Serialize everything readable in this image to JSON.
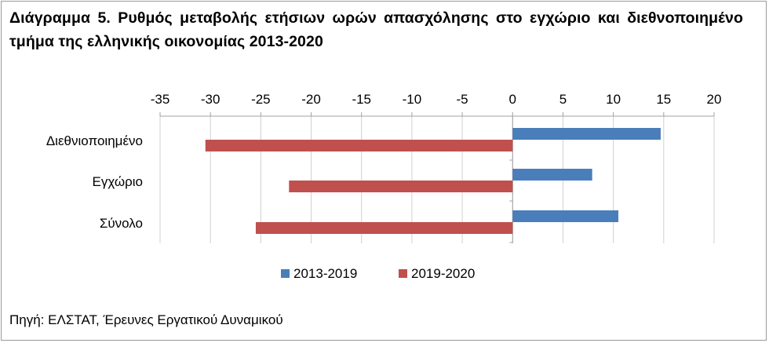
{
  "title": "Διάγραμμα 5. Ρυθμός μεταβολής ετήσιων ωρών απασχόλησης στο εγχώριο και διεθνοποιημένο τμήμα της ελληνικής οικονομίας 2013-2020",
  "source": "Πηγή: ΕΛΣΤΑΤ, Έρευνες Εργατικού Δυναμικού",
  "colors": {
    "series_2013_2019": "#4a7ebb",
    "series_2019_2020": "#c0504d",
    "axis": "#a0a0a0"
  },
  "chart_data": {
    "type": "bar",
    "orientation": "horizontal",
    "categories": [
      "Διεθνιοποιημένο",
      "Εγχώριο",
      "Σύνολο"
    ],
    "series": [
      {
        "name": "2013-2019",
        "color": "#4a7ebb",
        "values": [
          14.7,
          7.9,
          10.5
        ]
      },
      {
        "name": "2019-2020",
        "color": "#c0504d",
        "values": [
          -30.5,
          -22.2,
          -25.5
        ]
      }
    ],
    "xlim": [
      -35,
      20
    ],
    "xticks": [
      -35,
      -30,
      -25,
      -20,
      -15,
      -10,
      -5,
      0,
      5,
      10,
      15,
      20
    ],
    "grid": true,
    "legend_position": "bottom",
    "title": "",
    "xlabel": "",
    "ylabel": ""
  }
}
